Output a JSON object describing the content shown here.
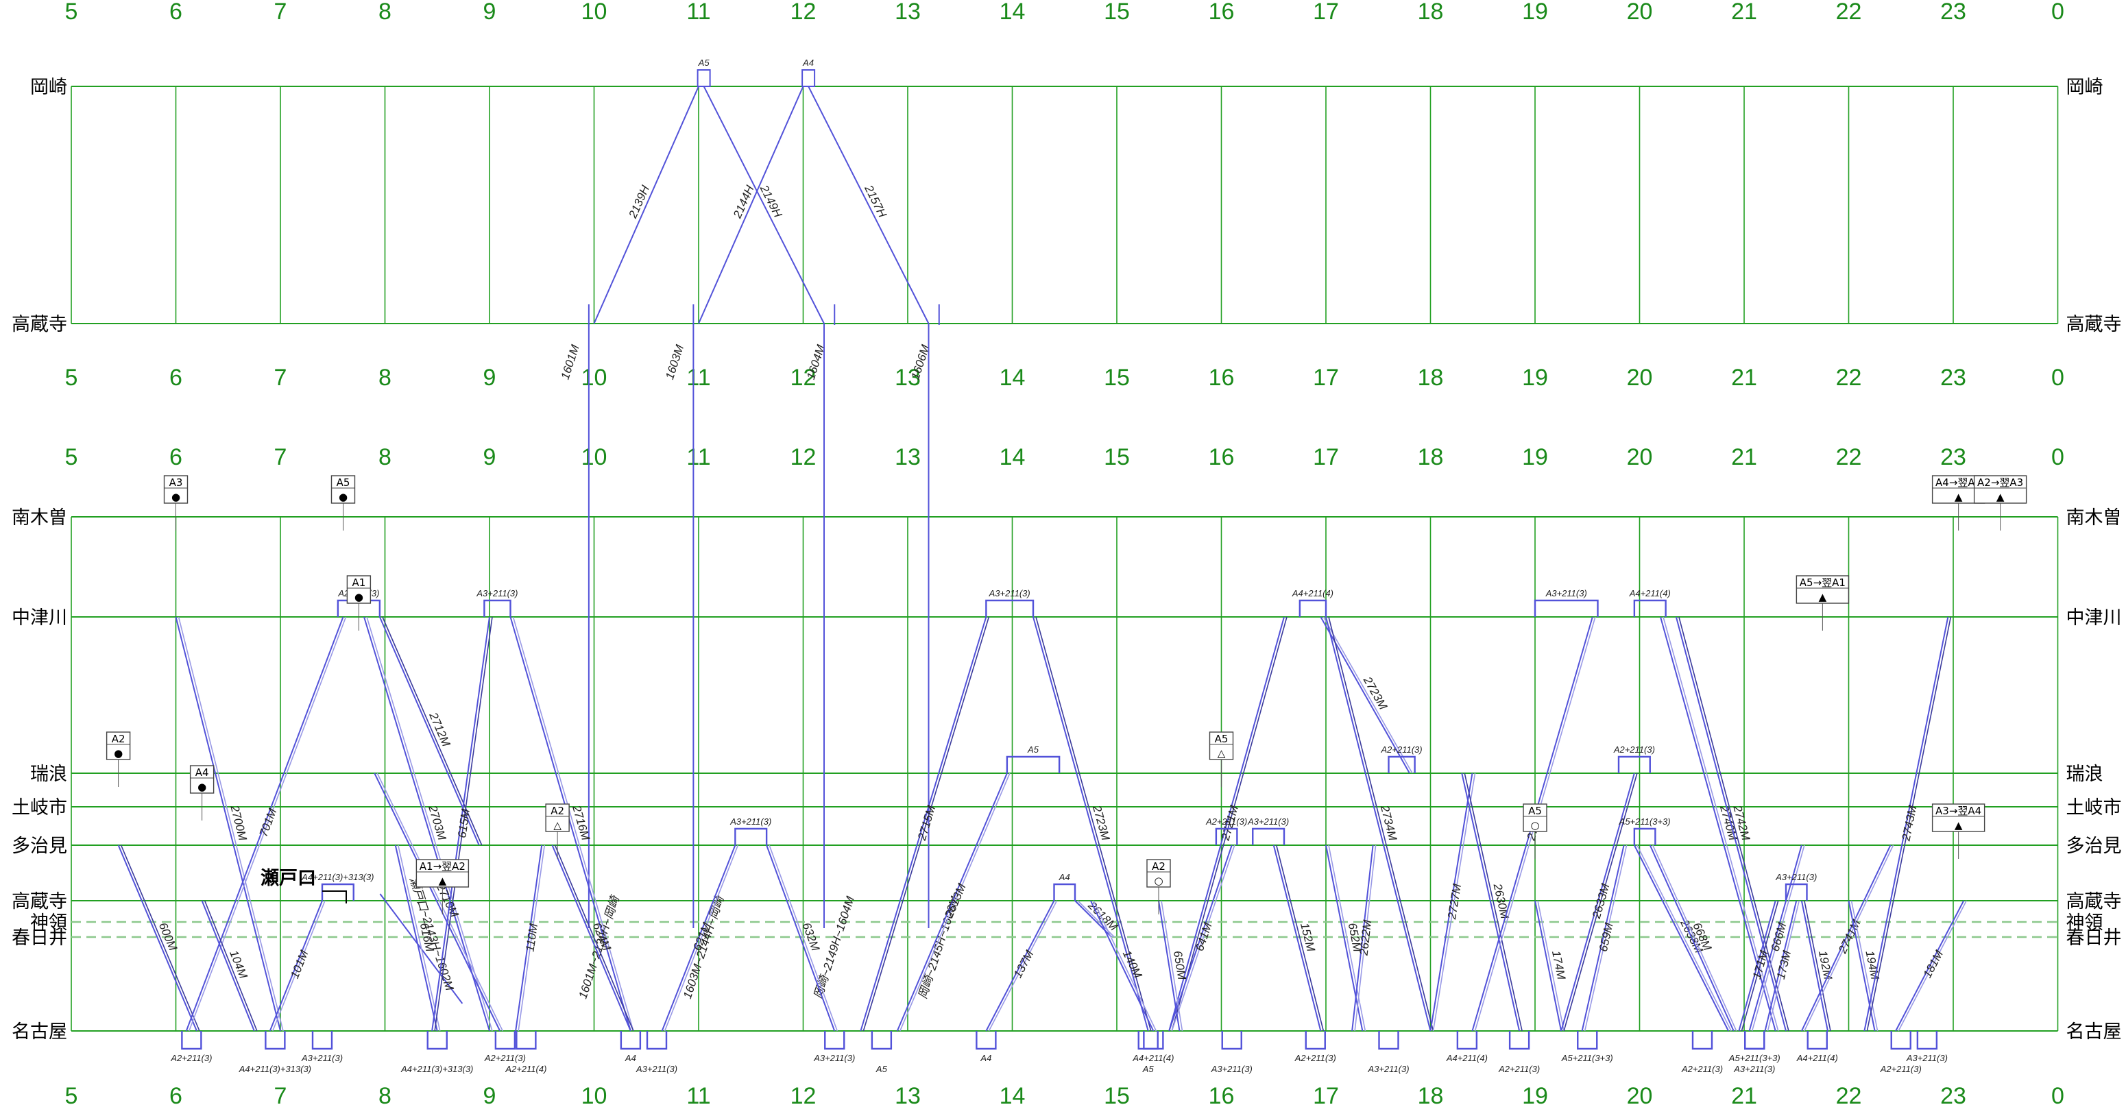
{
  "hours": [
    "5",
    "6",
    "7",
    "8",
    "9",
    "10",
    "11",
    "12",
    "13",
    "14",
    "15",
    "16",
    "17",
    "18",
    "19",
    "20",
    "21",
    "22",
    "23",
    "0"
  ],
  "top_stations": [
    "岡崎",
    "高蔵寺"
  ],
  "bottom_stations": [
    "南木曽",
    "中津川",
    "瑞浪",
    "土岐市",
    "多治見",
    "高蔵寺",
    "神領",
    "春日井",
    "名古屋"
  ],
  "center_label": "瀬戸口",
  "colors": {
    "grid": "#22a022",
    "train": "#5252d9",
    "train_dark": "#3b3b9c",
    "dashed": "#8cc88c"
  },
  "top_trains": [
    {
      "no": "2139H",
      "from": [
        10.0,
        "高蔵寺"
      ],
      "to": [
        11.0,
        "岡崎"
      ]
    },
    {
      "no": "2144H",
      "from": [
        11.0,
        "高蔵寺"
      ],
      "to": [
        12.0,
        "岡崎"
      ]
    },
    {
      "no": "2149H",
      "from": [
        11.05,
        "岡崎"
      ],
      "to": [
        12.2,
        "高蔵寺"
      ]
    },
    {
      "no": "2157H",
      "from": [
        12.05,
        "岡崎"
      ],
      "to": [
        13.2,
        "高蔵寺"
      ]
    }
  ],
  "top_labels": [
    {
      "text": "A5",
      "h": 11.05
    },
    {
      "text": "A4",
      "h": 12.05
    },
    {
      "text": "1601M",
      "h": 9.95
    },
    {
      "text": "1603M",
      "h": 10.95
    },
    {
      "text": "1604M",
      "h": 12.3
    },
    {
      "text": "1606M",
      "h": 13.3
    }
  ],
  "bottom_trains": [
    {
      "no": "600M",
      "from": [
        5.45,
        "多治見"
      ],
      "to": [
        6.2,
        "名古屋"
      ]
    },
    {
      "no": "2700M",
      "from": [
        6.0,
        "中津川"
      ],
      "to": [
        7.0,
        "名古屋"
      ]
    },
    {
      "no": "701M",
      "from": [
        6.1,
        "名古屋"
      ],
      "to": [
        7.6,
        "中津川"
      ]
    },
    {
      "no": "104M",
      "from": [
        6.25,
        "高蔵寺"
      ],
      "to": [
        6.75,
        "名古屋"
      ]
    },
    {
      "no": "101M",
      "from": [
        6.9,
        "名古屋"
      ],
      "to": [
        7.4,
        "高蔵寺"
      ]
    },
    {
      "no": "2703M",
      "from": [
        7.8,
        "中津川"
      ],
      "to": [
        9.0,
        "名古屋"
      ]
    },
    {
      "no": "2712M",
      "from": [
        7.95,
        "中津川"
      ],
      "to": [
        8.9,
        "多治見"
      ]
    },
    {
      "no": "2710M",
      "from": [
        7.9,
        "瑞浪"
      ],
      "to": [
        9.1,
        "名古屋"
      ]
    },
    {
      "no": "616M",
      "from": [
        8.1,
        "多治見"
      ],
      "to": [
        8.5,
        "名古屋"
      ]
    },
    {
      "no": "615M",
      "from": [
        8.45,
        "名古屋"
      ],
      "to": [
        9.0,
        "中津川"
      ]
    },
    {
      "no": "110M",
      "from": [
        9.25,
        "名古屋"
      ],
      "to": [
        9.5,
        "多治見"
      ]
    },
    {
      "no": "2716M",
      "from": [
        9.2,
        "中津川"
      ],
      "to": [
        10.35,
        "名古屋"
      ]
    },
    {
      "no": "624M",
      "from": [
        9.6,
        "多治見"
      ],
      "to": [
        10.35,
        "名古屋"
      ]
    },
    {
      "no": "621M",
      "from": [
        10.65,
        "名古屋"
      ],
      "to": [
        11.35,
        "多治見"
      ]
    },
    {
      "no": "632M",
      "from": [
        11.65,
        "多治見"
      ],
      "to": [
        12.3,
        "名古屋"
      ]
    },
    {
      "no": "2715M",
      "from": [
        12.55,
        "名古屋"
      ],
      "to": [
        13.75,
        "中津川"
      ]
    },
    {
      "no": "2613M",
      "from": [
        12.9,
        "名古屋"
      ],
      "to": [
        13.95,
        "瑞浪"
      ]
    },
    {
      "no": "137M",
      "from": [
        13.75,
        "名古屋"
      ],
      "to": [
        14.4,
        "高蔵寺"
      ]
    },
    {
      "no": "2723M",
      "from": [
        14.2,
        "中津川"
      ],
      "to": [
        15.3,
        "名古屋"
      ]
    },
    {
      "no": "2618M",
      "from": [
        14.6,
        "高蔵寺"
      ],
      "to": [
        14.95,
        "春日井"
      ]
    },
    {
      "no": "140M",
      "from": [
        14.75,
        "高蔵寺"
      ],
      "to": [
        15.35,
        "名古屋"
      ]
    },
    {
      "no": "2721M",
      "from": [
        15.5,
        "名古屋"
      ],
      "to": [
        16.6,
        "中津川"
      ]
    },
    {
      "no": "641M",
      "from": [
        15.5,
        "名古屋"
      ],
      "to": [
        16.1,
        "多治見"
      ]
    },
    {
      "no": "650M",
      "from": [
        15.4,
        "高蔵寺"
      ],
      "to": [
        15.6,
        "名古屋"
      ]
    },
    {
      "no": "152M",
      "from": [
        16.5,
        "多治見"
      ],
      "to": [
        16.95,
        "名古屋"
      ]
    },
    {
      "no": "652M",
      "from": [
        17.0,
        "多治見"
      ],
      "to": [
        17.35,
        "名古屋"
      ]
    },
    {
      "no": "2723M",
      "from": [
        16.95,
        "中津川"
      ],
      "to": [
        17.8,
        "瑞浪"
      ]
    },
    {
      "no": "2734M",
      "from": [
        17.0,
        "中津川"
      ],
      "to": [
        18.0,
        "名古屋"
      ]
    },
    {
      "no": "2622M",
      "from": [
        17.45,
        "多治見"
      ],
      "to": [
        17.25,
        "名古屋"
      ]
    },
    {
      "no": "2727M",
      "from": [
        18.0,
        "名古屋"
      ],
      "to": [
        18.4,
        "瑞浪"
      ]
    },
    {
      "no": "2630M",
      "from": [
        18.3,
        "瑞浪"
      ],
      "to": [
        18.85,
        "名古屋"
      ]
    },
    {
      "no": "2731M",
      "from": [
        18.4,
        "名古屋"
      ],
      "to": [
        19.55,
        "中津川"
      ]
    },
    {
      "no": "174M",
      "from": [
        19.0,
        "高蔵寺"
      ],
      "to": [
        19.25,
        "名古屋"
      ]
    },
    {
      "no": "2633M",
      "from": [
        19.25,
        "名古屋"
      ],
      "to": [
        19.95,
        "瑞浪"
      ]
    },
    {
      "no": "659M",
      "from": [
        19.45,
        "名古屋"
      ],
      "to": [
        19.85,
        "多治見"
      ]
    },
    {
      "no": "2740M",
      "from": [
        20.2,
        "中津川"
      ],
      "to": [
        21.3,
        "名古屋"
      ]
    },
    {
      "no": "2742M",
      "from": [
        20.35,
        "中津川"
      ],
      "to": [
        21.4,
        "名古屋"
      ]
    },
    {
      "no": "2638M",
      "from": [
        19.95,
        "多治見"
      ],
      "to": [
        20.85,
        "名古屋"
      ]
    },
    {
      "no": "668M",
      "from": [
        20.1,
        "多治見"
      ],
      "to": [
        20.9,
        "名古屋"
      ]
    },
    {
      "no": "171M",
      "from": [
        20.95,
        "名古屋"
      ],
      "to": [
        21.3,
        "高蔵寺"
      ]
    },
    {
      "no": "666M",
      "from": [
        21.05,
        "名古屋"
      ],
      "to": [
        21.55,
        "多治見"
      ]
    },
    {
      "no": "173M",
      "from": [
        21.2,
        "名古屋"
      ],
      "to": [
        21.5,
        "高蔵寺"
      ]
    },
    {
      "no": "192M",
      "from": [
        21.55,
        "高蔵寺"
      ],
      "to": [
        21.8,
        "名古屋"
      ]
    },
    {
      "no": "2741M",
      "from": [
        21.55,
        "名古屋"
      ],
      "to": [
        22.4,
        "多治見"
      ]
    },
    {
      "no": "194M",
      "from": [
        22.0,
        "高蔵寺"
      ],
      "to": [
        22.25,
        "名古屋"
      ]
    },
    {
      "no": "2743M",
      "from": [
        22.15,
        "名古屋"
      ],
      "to": [
        22.95,
        "中津川"
      ]
    },
    {
      "no": "181M",
      "from": [
        22.45,
        "名古屋"
      ],
      "to": [
        23.1,
        "高蔵寺"
      ]
    }
  ],
  "vertical_links": [
    {
      "h": 9.95,
      "label": "1601M~2139H~岡崎"
    },
    {
      "h": 10.95,
      "label": "1603M~2144H~岡崎"
    },
    {
      "h": 12.2,
      "label": "岡崎~2149H~1604M"
    },
    {
      "h": 13.2,
      "label": "岡崎~2145H~1606M"
    }
  ],
  "connectors": [
    {
      "h": 8.15,
      "label": "瀬戸口~2143H~1602M"
    }
  ],
  "markers": [
    {
      "text": "A3",
      "h": 6.0,
      "station": "南木曽",
      "symbol": "●"
    },
    {
      "text": "A5",
      "h": 7.6,
      "station": "南木曽",
      "symbol": "●"
    },
    {
      "text": "A1",
      "h": 7.75,
      "station": "中津川",
      "symbol": "●"
    },
    {
      "text": "A2",
      "h": 5.45,
      "station": "瑞浪",
      "symbol": "●"
    },
    {
      "text": "A4",
      "h": 6.25,
      "station": "土岐市",
      "symbol": "●"
    },
    {
      "text": "A2",
      "h": 9.65,
      "station": "多治見",
      "symbol": "△"
    },
    {
      "text": "A1→翌A2",
      "h": 8.55,
      "station": "高蔵寺",
      "symbol": "▲"
    },
    {
      "text": "A5",
      "h": 16.0,
      "station": "瑞浪",
      "symbol": "△"
    },
    {
      "text": "A2",
      "h": 15.4,
      "station": "高蔵寺",
      "symbol": "○"
    },
    {
      "text": "A5",
      "h": 19.0,
      "station": "多治見",
      "symbol": "○"
    },
    {
      "text": "A5→翌A1",
      "h": 21.75,
      "station": "中津川",
      "symbol": "▲"
    },
    {
      "text": "A3→翌A4",
      "h": 23.05,
      "station": "多治見",
      "symbol": "▲"
    },
    {
      "text": "A4→翌A5",
      "h": 23.05,
      "station": "南木曽",
      "symbol": "▲"
    },
    {
      "text": "A2→翌A3",
      "h": 23.45,
      "station": "南木曽",
      "symbol": "▲"
    }
  ],
  "plateaus": [
    {
      "h1": 7.55,
      "h2": 7.95,
      "station": "中津川",
      "label": "A2+211(3)"
    },
    {
      "h1": 8.95,
      "h2": 9.2,
      "station": "中津川",
      "label": "A3+211(3)"
    },
    {
      "h1": 13.75,
      "h2": 14.2,
      "station": "中津川",
      "label": "A3+211(3)"
    },
    {
      "h1": 13.95,
      "h2": 14.45,
      "station": "瑞浪",
      "label": "A5"
    },
    {
      "h1": 11.35,
      "h2": 11.65,
      "station": "多治見",
      "label": "A3+211(3)"
    },
    {
      "h1": 16.3,
      "h2": 16.6,
      "station": "多治見",
      "label": "A3+211(3)"
    },
    {
      "h1": 16.75,
      "h2": 17.0,
      "station": "中津川",
      "label": "A4+211(4)"
    },
    {
      "h1": 17.6,
      "h2": 17.85,
      "station": "瑞浪",
      "label": "A2+211(3)"
    },
    {
      "h1": 19.0,
      "h2": 19.6,
      "station": "中津川",
      "label": "A3+211(3)"
    },
    {
      "h1": 19.95,
      "h2": 20.25,
      "station": "中津川",
      "label": "A4+211(4)"
    },
    {
      "h1": 19.8,
      "h2": 20.1,
      "station": "瑞浪",
      "label": "A2+211(3)"
    },
    {
      "h1": 21.4,
      "h2": 21.6,
      "station": "高蔵寺",
      "label": "A3+211(3)"
    },
    {
      "h1": 14.4,
      "h2": 14.6,
      "station": "高蔵寺",
      "label": "A4"
    },
    {
      "h1": 7.4,
      "h2": 7.7,
      "station": "高蔵寺",
      "label": "A4+211(3)+313(3)"
    },
    {
      "h1": 15.95,
      "h2": 16.15,
      "station": "多治見",
      "label": "A2+211(3)"
    },
    {
      "h1": 19.95,
      "h2": 20.15,
      "station": "多治見",
      "label": "A5+211(3+3)"
    }
  ],
  "bottom_consists": [
    {
      "h": 6.15,
      "label": "A2+211(3)"
    },
    {
      "h": 6.95,
      "label": "A4+211(3)+313(3)"
    },
    {
      "h": 7.4,
      "label": "A3+211(3)"
    },
    {
      "h": 8.5,
      "label": "A4+211(3)+313(3)"
    },
    {
      "h": 9.15,
      "label": "A2+211(3)"
    },
    {
      "h": 9.35,
      "label": "A2+211(4)"
    },
    {
      "h": 10.35,
      "label": "A4"
    },
    {
      "h": 10.6,
      "label": "A3+211(3)"
    },
    {
      "h": 12.3,
      "label": "A3+211(3)"
    },
    {
      "h": 12.75,
      "label": "A5"
    },
    {
      "h": 13.75,
      "label": "A4"
    },
    {
      "h": 15.3,
      "label": "A5"
    },
    {
      "h": 15.35,
      "label": "A4+211(4)"
    },
    {
      "h": 16.1,
      "label": "A3+211(3)"
    },
    {
      "h": 16.9,
      "label": "A2+211(3)"
    },
    {
      "h": 17.6,
      "label": "A3+211(3)"
    },
    {
      "h": 18.35,
      "label": "A4+211(4)"
    },
    {
      "h": 18.85,
      "label": "A2+211(3)"
    },
    {
      "h": 19.5,
      "label": "A5+211(3+3)"
    },
    {
      "h": 20.6,
      "label": "A2+211(3)"
    },
    {
      "h": 21.1,
      "label": "A5+211(3+3)"
    },
    {
      "h": 21.1,
      "label": "A3+211(3)"
    },
    {
      "h": 21.7,
      "label": "A4+211(4)"
    },
    {
      "h": 22.5,
      "label": "A2+211(3)"
    },
    {
      "h": 22.75,
      "label": "A3+211(3)"
    }
  ]
}
